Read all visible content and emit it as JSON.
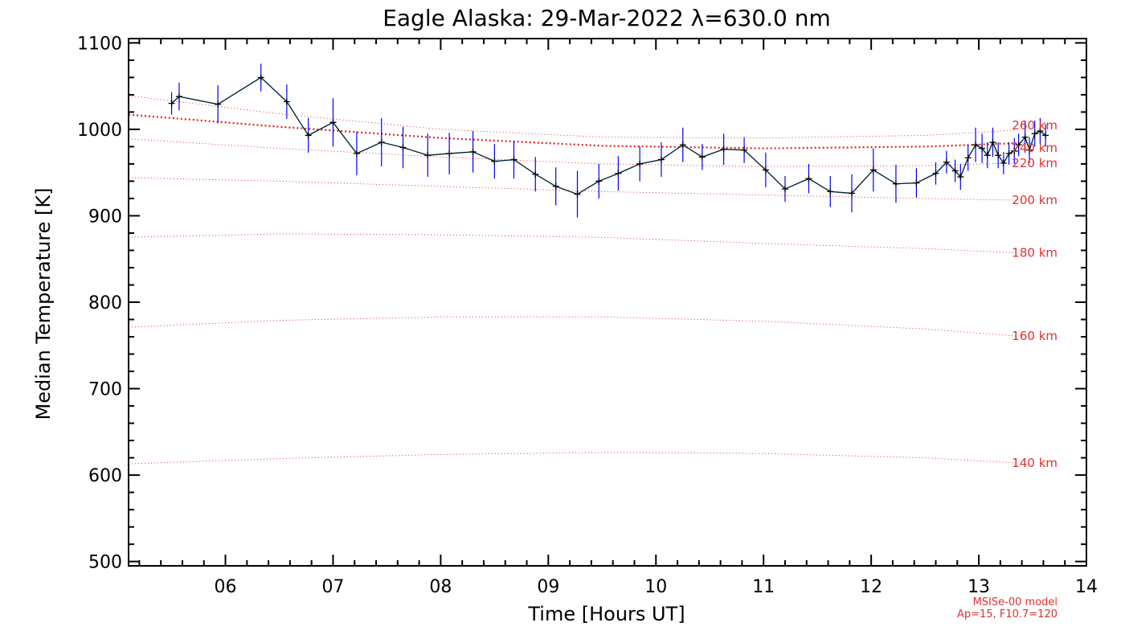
{
  "chart_data": {
    "type": "line",
    "title": "Eagle Alaska: 29-Mar-2022 λ=630.0 nm",
    "xlabel": "Time [Hours UT]",
    "ylabel": "Median Temperature [K]",
    "xlim": [
      5.1,
      14.0
    ],
    "ylim": [
      495,
      1105
    ],
    "xticks": [
      6,
      7,
      8,
      9,
      10,
      11,
      12,
      13,
      14
    ],
    "xtick_labels": [
      "06",
      "07",
      "08",
      "09",
      "10",
      "11",
      "12",
      "13",
      "14"
    ],
    "yticks": [
      500,
      600,
      700,
      800,
      900,
      1000,
      1100
    ],
    "ytick_labels": [
      "500",
      "600",
      "700",
      "800",
      "900",
      "1000",
      "1100"
    ],
    "grid": false,
    "colors": {
      "measurement": "#002a3a",
      "errorbar": "#0000ff",
      "model": "#e02020"
    },
    "series": [
      {
        "x": [
          5.5,
          5.57,
          5.93,
          6.33,
          6.57,
          6.77,
          7.0,
          7.22,
          7.45,
          7.65,
          7.88,
          8.08,
          8.3,
          8.5,
          8.68,
          8.88,
          9.07,
          9.27,
          9.47,
          9.65,
          9.85,
          10.05,
          10.25,
          10.43,
          10.63,
          10.82,
          11.02,
          11.2,
          11.42,
          11.62,
          11.82,
          12.02,
          12.23,
          12.42,
          12.6,
          12.7,
          12.78,
          12.83,
          12.9,
          12.97,
          13.03,
          13.08,
          13.13,
          13.18,
          13.23,
          13.28,
          13.33,
          13.37,
          13.43,
          13.47,
          13.52,
          13.57,
          13.62
        ],
        "values": [
          1030,
          1038,
          1029,
          1060,
          1032,
          993,
          1008,
          972,
          985,
          979,
          970,
          972,
          974,
          963,
          965,
          948,
          934,
          925,
          940,
          949,
          960,
          965,
          982,
          968,
          977,
          976,
          953,
          931,
          943,
          928,
          926,
          953,
          937,
          938,
          949,
          962,
          952,
          945,
          967,
          982,
          978,
          970,
          985,
          970,
          961,
          972,
          975,
          982,
          991,
          976,
          995,
          998,
          993
        ],
        "errors": [
          13,
          16,
          22,
          16,
          20,
          20,
          28,
          25,
          28,
          24,
          25,
          24,
          24,
          20,
          22,
          20,
          22,
          27,
          20,
          20,
          20,
          20,
          20,
          15,
          18,
          15,
          20,
          15,
          17,
          18,
          22,
          25,
          22,
          17,
          13,
          13,
          13,
          15,
          15,
          20,
          17,
          15,
          17,
          15,
          13,
          13,
          15,
          13,
          18,
          15,
          15,
          15,
          13
        ]
      },
      {
        "name": "140 km",
        "x": [
          5.1,
          6.5,
          8.0,
          9.5,
          11.0,
          12.5,
          13.35
        ],
        "values": [
          613,
          619,
          624,
          626,
          625,
          620,
          614
        ]
      },
      {
        "name": "160 km",
        "x": [
          5.1,
          6.5,
          8.0,
          9.5,
          11.0,
          12.5,
          13.35
        ],
        "values": [
          771,
          779,
          783,
          783,
          778,
          769,
          761
        ]
      },
      {
        "name": "180 km",
        "x": [
          5.1,
          6.5,
          8.0,
          9.5,
          11.0,
          12.5,
          13.35
        ],
        "values": [
          875,
          879,
          878,
          875,
          868,
          862,
          857
        ]
      },
      {
        "name": "200 km",
        "x": [
          5.1,
          6.5,
          8.0,
          9.5,
          11.0,
          12.5,
          13.35
        ],
        "values": [
          944,
          940,
          934,
          928,
          924,
          920,
          918
        ]
      },
      {
        "name": "220 km",
        "x": [
          5.1,
          6.5,
          8.0,
          9.5,
          11.0,
          12.5,
          13.35
        ],
        "values": [
          989,
          978,
          968,
          960,
          957,
          958,
          961
        ]
      },
      {
        "name": "240 km",
        "x": [
          5.1,
          6.5,
          8.0,
          9.5,
          11.0,
          12.5,
          13.35
        ],
        "values": [
          1017,
          1003,
          990,
          981,
          978,
          980,
          984
        ]
      },
      {
        "name": "260 km",
        "x": [
          5.1,
          6.5,
          8.0,
          9.5,
          11.0,
          12.5,
          13.35
        ],
        "values": [
          1039,
          1018,
          1000,
          991,
          990,
          993,
          999
        ]
      }
    ],
    "annotations": {
      "altitude_labels": [
        "140 km",
        "160 km",
        "180 km",
        "200 km",
        "220 km",
        "240 km",
        "260 km"
      ],
      "model_note": [
        "MSISe-00 model",
        "Ap=15, F10.7=120"
      ]
    }
  }
}
